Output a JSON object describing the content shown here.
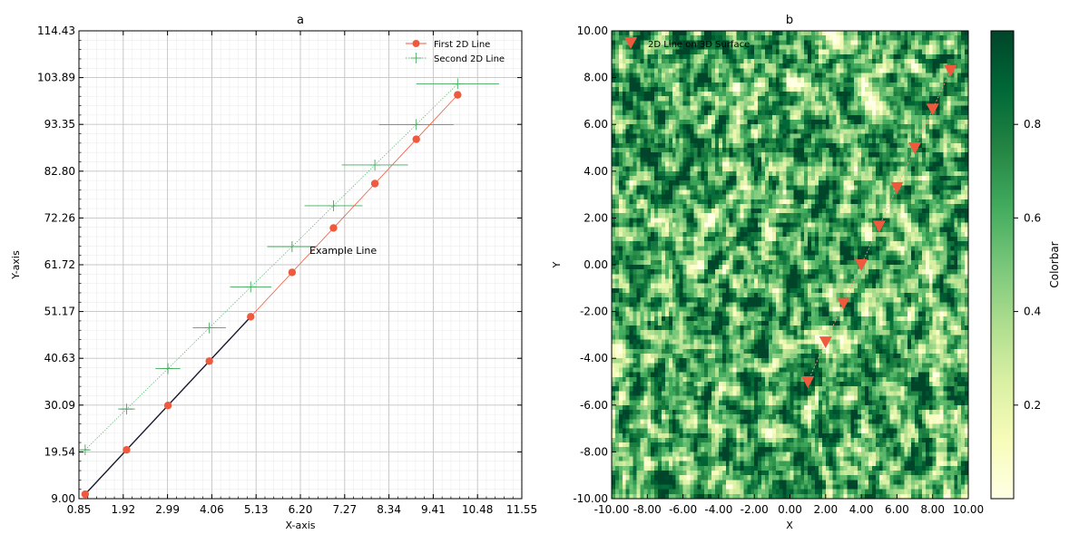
{
  "chart_data": [
    {
      "type": "line",
      "title": "a",
      "xlabel": "X-axis",
      "ylabel": "Y-axis",
      "xlim": [
        0.85,
        11.55
      ],
      "ylim": [
        9.0,
        114.43
      ],
      "xticks": [
        "0.85",
        "1.92",
        "2.99",
        "4.06",
        "5.13",
        "6.20",
        "7.27",
        "8.34",
        "9.41",
        "10.48",
        "11.55"
      ],
      "yticks": [
        "9.00",
        "19.54",
        "30.09",
        "40.63",
        "51.17",
        "61.72",
        "72.26",
        "82.80",
        "93.35",
        "103.89",
        "114.43"
      ],
      "grid": true,
      "minor_grid": true,
      "legend_position": "upper right",
      "annotation": {
        "text": "Example Line",
        "x": 6.2,
        "y": 65.0
      },
      "series": [
        {
          "name": "First 2D Line",
          "color": "#f05a3c",
          "marker": "circle",
          "x": [
            1,
            2,
            3,
            4,
            5,
            6,
            7,
            8,
            9,
            10
          ],
          "y": [
            10,
            20,
            30,
            40,
            50,
            60,
            70,
            80,
            90,
            100
          ],
          "highlight_segment": {
            "from_x": 1,
            "to_x": 5,
            "color": "#1a1a2e"
          }
        },
        {
          "name": "Second 2D Line",
          "color": "#41ab5d",
          "marker": "plus",
          "x": [
            1,
            2,
            3,
            4,
            5,
            6,
            7,
            8,
            9,
            10
          ],
          "y": [
            20,
            29.2,
            38.3,
            47.5,
            56.7,
            65.8,
            75,
            84.2,
            93.3,
            102.5
          ],
          "xerr": [
            0.05,
            0.1,
            0.15,
            0.2,
            0.25,
            0.3,
            0.35,
            0.4,
            0.45,
            0.5
          ]
        }
      ]
    },
    {
      "type": "heatmap",
      "title": "b",
      "xlabel": "X",
      "ylabel": "Y",
      "xlim": [
        -10,
        10
      ],
      "ylim": [
        -10,
        10
      ],
      "xticks": [
        "-10.00",
        "-8.00",
        "-6.00",
        "-4.00",
        "-2.00",
        "0.00",
        "2.00",
        "4.00",
        "6.00",
        "8.00",
        "10.00"
      ],
      "yticks": [
        "-10.00",
        "-8.00",
        "-6.00",
        "-4.00",
        "-2.00",
        "0.00",
        "2.00",
        "4.00",
        "6.00",
        "8.00",
        "10.00"
      ],
      "colormap": "YlGn",
      "color_range": [
        0,
        1
      ],
      "colorbar_label": "Colorbar",
      "colorbar_ticks": [
        "0.2",
        "0.4",
        "0.6",
        "0.8"
      ],
      "legend_position": "upper left",
      "series": [
        {
          "name": "2D Line on 3D Surface",
          "color": "#f05a3c",
          "marker": "triangle-down",
          "x": [
            1,
            2,
            3,
            4,
            5,
            6,
            7,
            8,
            9
          ],
          "y": [
            -5,
            -3.3,
            -1.65,
            0,
            1.65,
            3.3,
            5,
            6.65,
            8.3
          ]
        }
      ]
    }
  ]
}
